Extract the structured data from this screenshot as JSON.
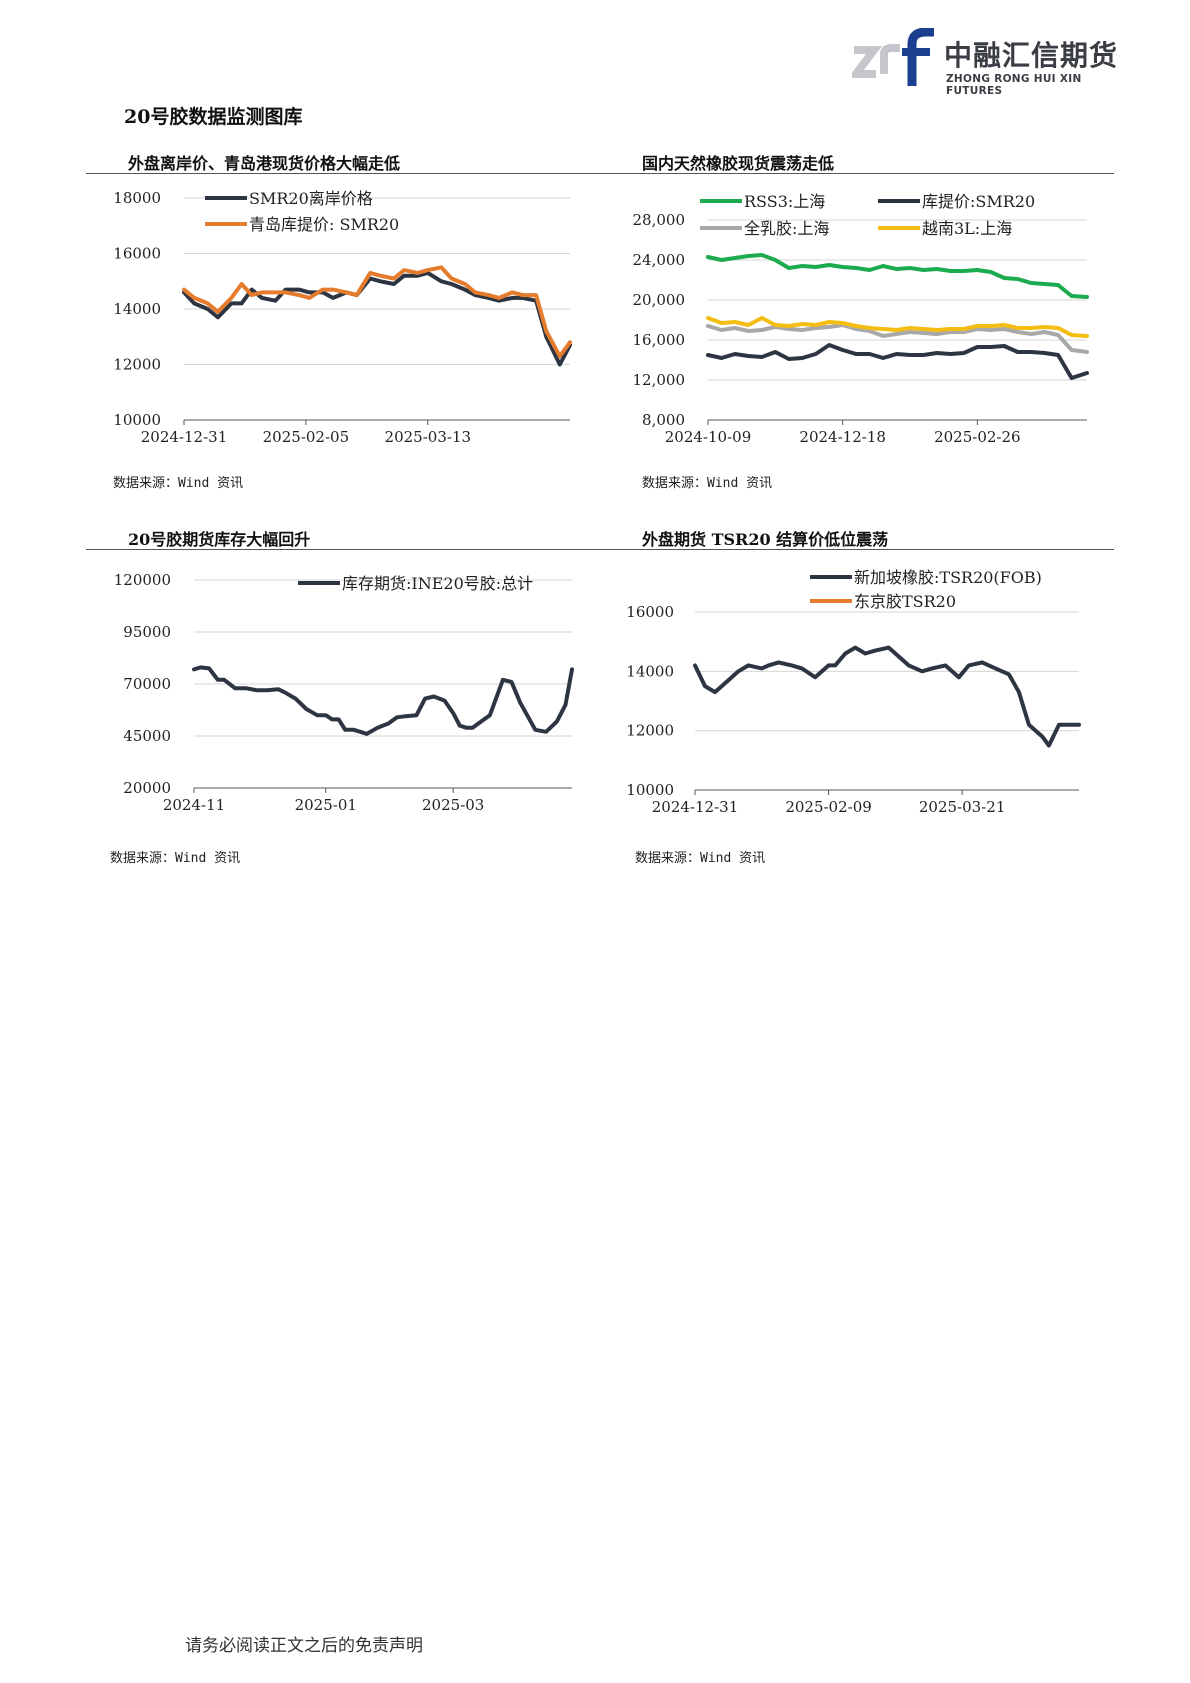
{
  "header": {
    "logo_name": "中融汇信期货",
    "logo_sub": "ZHONG RONG HUI XIN FUTURES"
  },
  "page_title": "20号胶数据监测图库",
  "footer": "请务必阅读正文之后的免责声明",
  "panels": [
    {
      "title": "外盘离岸价、青岛港现货价格大幅走低",
      "source": "数据来源：Wind 资讯"
    },
    {
      "title": "国内天然橡胶现货震荡走低",
      "source": "数据来源：Wind 资讯"
    },
    {
      "title": "20号胶期货库存大幅回升",
      "source": "数据来源：Wind 资讯"
    },
    {
      "title": "外盘期货 TSR20 结算价低位震荡",
      "source": "数据来源：Wind 资讯"
    }
  ],
  "colors": {
    "dark": "#2e3542",
    "orange": "#e57c2d",
    "green": "#1cab4f",
    "gray": "#a8a8a8",
    "yellow": "#f4bd12"
  },
  "chart_data": [
    {
      "type": "line",
      "ylim": [
        10000,
        18000
      ],
      "yticks": [
        10000,
        12000,
        14000,
        16000,
        18000
      ],
      "ytick_labels": [
        "10000",
        "12000",
        "14000",
        "16000",
        "18000"
      ],
      "xlim": [
        "2024-12-31",
        "2025-04-24"
      ],
      "xticks": [
        "2024-12-31",
        "2025-02-05",
        "2025-03-13"
      ],
      "grid": true,
      "legend": "top-left",
      "series": [
        {
          "name": "SMR20离岸价格",
          "color": "#2e3542",
          "x": [
            "2024-12-31",
            "2025-01-03",
            "2025-01-07",
            "2025-01-10",
            "2025-01-14",
            "2025-01-17",
            "2025-01-20",
            "2025-01-23",
            "2025-01-27",
            "2025-01-30",
            "2025-02-03",
            "2025-02-06",
            "2025-02-10",
            "2025-02-13",
            "2025-02-17",
            "2025-02-20",
            "2025-02-24",
            "2025-02-27",
            "2025-03-03",
            "2025-03-06",
            "2025-03-10",
            "2025-03-13",
            "2025-03-17",
            "2025-03-20",
            "2025-03-24",
            "2025-03-27",
            "2025-03-31",
            "2025-04-03",
            "2025-04-07",
            "2025-04-10",
            "2025-04-14",
            "2025-04-17",
            "2025-04-21",
            "2025-04-24"
          ],
          "y": [
            14600,
            14200,
            14000,
            13700,
            14200,
            14200,
            14700,
            14400,
            14300,
            14700,
            14700,
            14600,
            14600,
            14400,
            14600,
            14500,
            15100,
            15000,
            14900,
            15200,
            15200,
            15300,
            15000,
            14900,
            14700,
            14500,
            14400,
            14300,
            14400,
            14400,
            14300,
            13000,
            12000,
            12700
          ]
        },
        {
          "name": "青岛库提价: SMR20",
          "color": "#e57c2d",
          "x": [
            "2024-12-31",
            "2025-01-03",
            "2025-01-07",
            "2025-01-10",
            "2025-01-14",
            "2025-01-17",
            "2025-01-20",
            "2025-01-23",
            "2025-01-27",
            "2025-01-30",
            "2025-02-03",
            "2025-02-06",
            "2025-02-10",
            "2025-02-13",
            "2025-02-17",
            "2025-02-20",
            "2025-02-24",
            "2025-02-27",
            "2025-03-03",
            "2025-03-06",
            "2025-03-10",
            "2025-03-13",
            "2025-03-17",
            "2025-03-20",
            "2025-03-24",
            "2025-03-27",
            "2025-03-31",
            "2025-04-03",
            "2025-04-07",
            "2025-04-10",
            "2025-04-14",
            "2025-04-17",
            "2025-04-21",
            "2025-04-24"
          ],
          "y": [
            14700,
            14400,
            14200,
            13900,
            14400,
            14900,
            14500,
            14600,
            14600,
            14600,
            14500,
            14400,
            14700,
            14700,
            14600,
            14500,
            15300,
            15200,
            15100,
            15400,
            15300,
            15400,
            15500,
            15100,
            14900,
            14600,
            14500,
            14400,
            14600,
            14500,
            14500,
            13200,
            12300,
            12800
          ]
        }
      ]
    },
    {
      "type": "line",
      "ylim": [
        8000,
        28000
      ],
      "yticks": [
        8000,
        12000,
        16000,
        20000,
        24000,
        28000
      ],
      "ytick_labels": [
        "8,000",
        "12,000",
        "16,000",
        "20,000",
        "24,000",
        "28,000"
      ],
      "xlim": [
        "2024-10-09",
        "2025-04-24"
      ],
      "xticks": [
        "2024-10-09",
        "2024-12-18",
        "2025-02-26"
      ],
      "grid": true,
      "legend": "top",
      "series": [
        {
          "name": "RSS3:上海",
          "color": "#1cab4f",
          "x": [
            "2024-10-09",
            "2024-10-16",
            "2024-10-23",
            "2024-10-30",
            "2024-11-06",
            "2024-11-13",
            "2024-11-20",
            "2024-11-27",
            "2024-12-04",
            "2024-12-11",
            "2024-12-18",
            "2024-12-25",
            "2025-01-01",
            "2025-01-08",
            "2025-01-15",
            "2025-01-22",
            "2025-01-29",
            "2025-02-05",
            "2025-02-12",
            "2025-02-19",
            "2025-02-26",
            "2025-03-05",
            "2025-03-12",
            "2025-03-19",
            "2025-03-26",
            "2025-04-02",
            "2025-04-09",
            "2025-04-16",
            "2025-04-24"
          ],
          "y": [
            24300,
            24000,
            24200,
            24400,
            24500,
            24000,
            23200,
            23400,
            23300,
            23500,
            23300,
            23200,
            23000,
            23400,
            23100,
            23200,
            23000,
            23100,
            22900,
            22900,
            23000,
            22800,
            22200,
            22100,
            21700,
            21600,
            21500,
            20400,
            20300
          ]
        },
        {
          "name": "库提价:SMR20",
          "color": "#2e3542",
          "x": [
            "2024-10-09",
            "2024-10-16",
            "2024-10-23",
            "2024-10-30",
            "2024-11-06",
            "2024-11-13",
            "2024-11-20",
            "2024-11-27",
            "2024-12-04",
            "2024-12-11",
            "2024-12-18",
            "2024-12-25",
            "2025-01-01",
            "2025-01-08",
            "2025-01-15",
            "2025-01-22",
            "2025-01-29",
            "2025-02-05",
            "2025-02-12",
            "2025-02-19",
            "2025-02-26",
            "2025-03-05",
            "2025-03-12",
            "2025-03-19",
            "2025-03-26",
            "2025-04-02",
            "2025-04-09",
            "2025-04-16",
            "2025-04-24"
          ],
          "y": [
            14500,
            14200,
            14600,
            14400,
            14300,
            14800,
            14100,
            14200,
            14600,
            15500,
            15000,
            14600,
            14600,
            14200,
            14600,
            14500,
            14500,
            14700,
            14600,
            14700,
            15300,
            15300,
            15400,
            14800,
            14800,
            14700,
            14500,
            12200,
            12700
          ]
        },
        {
          "name": "全乳胶:上海",
          "color": "#a8a8a8",
          "x": [
            "2024-10-09",
            "2024-10-16",
            "2024-10-23",
            "2024-10-30",
            "2024-11-06",
            "2024-11-13",
            "2024-11-20",
            "2024-11-27",
            "2024-12-04",
            "2024-12-11",
            "2024-12-18",
            "2024-12-25",
            "2025-01-01",
            "2025-01-08",
            "2025-01-15",
            "2025-01-22",
            "2025-01-29",
            "2025-02-05",
            "2025-02-12",
            "2025-02-19",
            "2025-02-26",
            "2025-03-05",
            "2025-03-12",
            "2025-03-19",
            "2025-03-26",
            "2025-04-02",
            "2025-04-09",
            "2025-04-16",
            "2025-04-24"
          ],
          "y": [
            17400,
            17000,
            17200,
            16900,
            17000,
            17300,
            17100,
            17000,
            17200,
            17300,
            17500,
            17100,
            16900,
            16400,
            16600,
            16800,
            16700,
            16600,
            16800,
            16800,
            17100,
            17000,
            17100,
            16800,
            16600,
            16800,
            16500,
            15000,
            14800
          ]
        },
        {
          "name": "越南3L:上海",
          "color": "#f4bd12",
          "x": [
            "2024-10-09",
            "2024-10-16",
            "2024-10-23",
            "2024-10-30",
            "2024-11-06",
            "2024-11-13",
            "2024-11-20",
            "2024-11-27",
            "2024-12-04",
            "2024-12-11",
            "2024-12-18",
            "2024-12-25",
            "2025-01-01",
            "2025-01-08",
            "2025-01-15",
            "2025-01-22",
            "2025-01-29",
            "2025-02-05",
            "2025-02-12",
            "2025-02-19",
            "2025-02-26",
            "2025-03-05",
            "2025-03-12",
            "2025-03-19",
            "2025-03-26",
            "2025-04-02",
            "2025-04-09",
            "2025-04-16",
            "2025-04-24"
          ],
          "y": [
            18200,
            17700,
            17800,
            17500,
            18200,
            17500,
            17400,
            17600,
            17500,
            17800,
            17700,
            17400,
            17200,
            17100,
            17000,
            17200,
            17100,
            17000,
            17100,
            17100,
            17400,
            17400,
            17500,
            17200,
            17200,
            17300,
            17200,
            16500,
            16400
          ]
        }
      ]
    },
    {
      "type": "line",
      "ylim": [
        20000,
        120000
      ],
      "yticks": [
        20000,
        45000,
        70000,
        95000,
        120000
      ],
      "ytick_labels": [
        "20000",
        "45000",
        "70000",
        "95000",
        "120000"
      ],
      "xlim": [
        "2024-11-01",
        "2025-04-25"
      ],
      "xticks": [
        "2024-11-01",
        "2025-01-01",
        "2025-03-01"
      ],
      "xtick_labels": [
        "2024-11",
        "2025-01",
        "2025-03"
      ],
      "grid": true,
      "legend": "top-right",
      "series": [
        {
          "name": "库存期货:INE20号胶:总计",
          "color": "#2e3542",
          "x": [
            "2024-11-01",
            "2024-11-04",
            "2024-11-08",
            "2024-11-12",
            "2024-11-15",
            "2024-11-20",
            "2024-11-25",
            "2024-11-30",
            "2024-12-05",
            "2024-12-10",
            "2024-12-13",
            "2024-12-18",
            "2024-12-23",
            "2024-12-28",
            "2025-01-01",
            "2025-01-04",
            "2025-01-07",
            "2025-01-10",
            "2025-01-14",
            "2025-01-20",
            "2025-01-25",
            "2025-01-30",
            "2025-02-03",
            "2025-02-07",
            "2025-02-12",
            "2025-02-16",
            "2025-02-20",
            "2025-02-25",
            "2025-03-01",
            "2025-03-04",
            "2025-03-07",
            "2025-03-10",
            "2025-03-14",
            "2025-03-18",
            "2025-03-24",
            "2025-03-28",
            "2025-04-01",
            "2025-04-08",
            "2025-04-13",
            "2025-04-18",
            "2025-04-22",
            "2025-04-25"
          ],
          "y": [
            77000,
            78000,
            77500,
            72000,
            72000,
            68000,
            68000,
            67000,
            67000,
            67500,
            66000,
            63000,
            58000,
            55000,
            55000,
            53000,
            53000,
            48000,
            48000,
            46000,
            49000,
            51000,
            54000,
            54500,
            55000,
            63000,
            64000,
            62000,
            56000,
            50000,
            49000,
            49000,
            52000,
            55000,
            72000,
            71000,
            61000,
            48000,
            47000,
            52000,
            60000,
            77000
          ]
        }
      ]
    },
    {
      "type": "line",
      "ylim": [
        10000,
        16000
      ],
      "yticks": [
        10000,
        12000,
        14000,
        16000
      ],
      "ytick_labels": [
        "10000",
        "12000",
        "14000",
        "16000"
      ],
      "xlim": [
        "2024-12-31",
        "2025-04-25"
      ],
      "xticks": [
        "2024-12-31",
        "2025-02-09",
        "2025-03-21"
      ],
      "grid": true,
      "legend": "top-center",
      "series": [
        {
          "name": "新加坡橡胶:TSR20(FOB)",
          "color": "#2e3542",
          "x": [
            "2024-12-31",
            "2025-01-03",
            "2025-01-06",
            "2025-01-10",
            "2025-01-13",
            "2025-01-16",
            "2025-01-20",
            "2025-01-22",
            "2025-01-25",
            "2025-01-29",
            "2025-02-01",
            "2025-02-05",
            "2025-02-09",
            "2025-02-11",
            "2025-02-14",
            "2025-02-17",
            "2025-02-20",
            "2025-02-23",
            "2025-02-27",
            "2025-03-02",
            "2025-03-05",
            "2025-03-09",
            "2025-03-12",
            "2025-03-16",
            "2025-03-20",
            "2025-03-23",
            "2025-03-27",
            "2025-03-31",
            "2025-04-04",
            "2025-04-07",
            "2025-04-10",
            "2025-04-14",
            "2025-04-16",
            "2025-04-19",
            "2025-04-25"
          ],
          "y": [
            14200,
            13500,
            13300,
            13700,
            14000,
            14200,
            14100,
            14200,
            14300,
            14200,
            14100,
            13800,
            14200,
            14200,
            14600,
            14800,
            14600,
            14700,
            14800,
            14500,
            14200,
            14000,
            14100,
            14200,
            13800,
            14200,
            14300,
            14100,
            13900,
            13300,
            12200,
            11800,
            11500,
            12200,
            12200
          ]
        },
        {
          "name": "东京胶TSR20",
          "color": "#e57c2d",
          "x": [],
          "y": []
        }
      ]
    }
  ]
}
